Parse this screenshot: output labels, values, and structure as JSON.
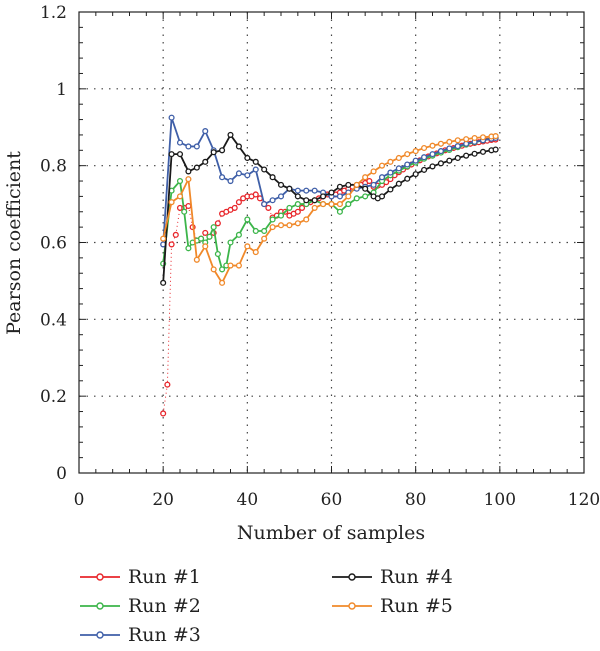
{
  "chart_data": {
    "type": "line",
    "xlabel": "Number of samples",
    "ylabel": "Pearson coefficient",
    "xlim": [
      0,
      120
    ],
    "ylim": [
      0,
      1.2
    ],
    "xticks": [
      0,
      20,
      40,
      60,
      80,
      100,
      120
    ],
    "yticks": [
      0,
      0.2,
      0.4,
      0.6,
      0.8,
      1,
      1.2
    ],
    "xtick_labels": [
      "0",
      "20",
      "40",
      "60",
      "80",
      "100",
      "120"
    ],
    "ytick_labels": [
      "0",
      "0.2",
      "0.4",
      "0.6",
      "0.8",
      "1",
      "1.2"
    ],
    "grid": "dotted",
    "legend_position": "below plot",
    "series": [
      {
        "name": "Run #1",
        "color": "#e8262b",
        "marker": "hollow-circle",
        "line": false,
        "x": [
          20,
          21,
          22,
          23,
          24,
          25,
          26,
          27,
          28,
          29,
          30,
          31,
          32,
          33,
          34,
          35,
          36,
          37,
          38,
          39,
          40,
          41,
          42,
          43,
          44,
          45,
          46,
          47,
          48,
          49,
          50,
          51,
          52,
          53,
          54,
          55,
          56,
          57,
          58,
          59,
          60,
          61,
          62,
          63,
          64,
          65,
          66,
          67,
          68,
          69,
          70,
          71,
          72,
          73,
          74,
          75,
          76,
          77,
          78,
          79,
          80,
          81,
          82,
          83,
          84,
          85,
          86,
          87,
          88,
          89,
          90,
          91,
          92,
          93,
          94,
          95,
          96,
          97,
          98,
          99
        ],
        "y": [
          0.155,
          0.23,
          0.595,
          0.62,
          0.69,
          0.69,
          0.695,
          0.64,
          0.605,
          0.61,
          0.625,
          0.615,
          0.625,
          0.65,
          0.675,
          0.68,
          0.685,
          0.69,
          0.705,
          0.715,
          0.72,
          0.72,
          0.725,
          0.715,
          0.7,
          0.69,
          0.665,
          0.67,
          0.68,
          0.68,
          0.67,
          0.675,
          0.68,
          0.69,
          0.7,
          0.705,
          0.71,
          0.715,
          0.72,
          0.725,
          0.72,
          0.725,
          0.73,
          0.735,
          0.74,
          0.745,
          0.745,
          0.75,
          0.755,
          0.76,
          0.745,
          0.748,
          0.75,
          0.757,
          0.765,
          0.775,
          0.783,
          0.79,
          0.797,
          0.803,
          0.809,
          0.814,
          0.819,
          0.824,
          0.828,
          0.832,
          0.836,
          0.84,
          0.843,
          0.846,
          0.849,
          0.852,
          0.855,
          0.857,
          0.859,
          0.861,
          0.863,
          0.865,
          0.867,
          0.868
        ]
      },
      {
        "name": "Run #2",
        "color": "#3cb54a",
        "marker": "hollow-circle",
        "line": true,
        "x": [
          20,
          22,
          24,
          25,
          26,
          27,
          28,
          29,
          30,
          31,
          32,
          33,
          34,
          35,
          36,
          38,
          40,
          42,
          44,
          46,
          48,
          50,
          52,
          54,
          56,
          58,
          60,
          62,
          64,
          66,
          68,
          70,
          72,
          74,
          76,
          78,
          80,
          82,
          84,
          86,
          88,
          90,
          92,
          94,
          96,
          98,
          99
        ],
        "y": [
          0.545,
          0.735,
          0.76,
          0.68,
          0.585,
          0.6,
          0.605,
          0.61,
          0.6,
          0.615,
          0.64,
          0.57,
          0.53,
          0.54,
          0.6,
          0.62,
          0.66,
          0.63,
          0.63,
          0.66,
          0.67,
          0.69,
          0.7,
          0.7,
          0.71,
          0.7,
          0.7,
          0.68,
          0.7,
          0.715,
          0.72,
          0.73,
          0.76,
          0.775,
          0.787,
          0.798,
          0.808,
          0.818,
          0.826,
          0.834,
          0.841,
          0.848,
          0.855,
          0.861,
          0.866,
          0.871,
          0.873
        ]
      },
      {
        "name": "Run #3",
        "color": "#3f5fa8",
        "marker": "hollow-circle",
        "line": true,
        "x": [
          20,
          22,
          24,
          26,
          28,
          30,
          32,
          34,
          36,
          38,
          40,
          42,
          44,
          46,
          48,
          50,
          52,
          54,
          56,
          58,
          60,
          62,
          64,
          66,
          68,
          70,
          72,
          74,
          76,
          78,
          80,
          82,
          84,
          86,
          88,
          90,
          92,
          94,
          96,
          98,
          99
        ],
        "y": [
          0.595,
          0.925,
          0.86,
          0.85,
          0.85,
          0.89,
          0.84,
          0.77,
          0.76,
          0.78,
          0.775,
          0.79,
          0.7,
          0.71,
          0.72,
          0.74,
          0.735,
          0.735,
          0.735,
          0.73,
          0.72,
          0.72,
          0.73,
          0.74,
          0.745,
          0.75,
          0.77,
          0.782,
          0.793,
          0.803,
          0.813,
          0.822,
          0.83,
          0.838,
          0.845,
          0.851,
          0.857,
          0.862,
          0.866,
          0.87,
          0.872
        ]
      },
      {
        "name": "Run #4",
        "color": "#1a1a1a",
        "marker": "hollow-circle",
        "line": true,
        "x": [
          20,
          22,
          24,
          26,
          28,
          30,
          32,
          34,
          36,
          38,
          40,
          42,
          44,
          46,
          48,
          50,
          52,
          54,
          56,
          58,
          60,
          62,
          64,
          66,
          68,
          70,
          71,
          72,
          74,
          76,
          78,
          80,
          82,
          84,
          86,
          88,
          90,
          92,
          94,
          96,
          98,
          99
        ],
        "y": [
          0.495,
          0.83,
          0.83,
          0.785,
          0.795,
          0.81,
          0.835,
          0.84,
          0.88,
          0.85,
          0.82,
          0.81,
          0.79,
          0.77,
          0.75,
          0.74,
          0.72,
          0.71,
          0.71,
          0.72,
          0.73,
          0.745,
          0.75,
          0.75,
          0.74,
          0.72,
          0.715,
          0.72,
          0.738,
          0.753,
          0.766,
          0.778,
          0.789,
          0.798,
          0.806,
          0.813,
          0.82,
          0.826,
          0.831,
          0.836,
          0.84,
          0.842
        ]
      },
      {
        "name": "Run #5",
        "color": "#f0892a",
        "marker": "hollow-circle",
        "line": true,
        "x": [
          20,
          22,
          24,
          26,
          28,
          30,
          32,
          34,
          36,
          38,
          40,
          42,
          44,
          46,
          48,
          50,
          52,
          54,
          56,
          58,
          60,
          62,
          64,
          66,
          68,
          70,
          72,
          74,
          76,
          78,
          80,
          82,
          84,
          86,
          88,
          90,
          92,
          94,
          96,
          98,
          99
        ],
        "y": [
          0.61,
          0.705,
          0.72,
          0.765,
          0.555,
          0.59,
          0.53,
          0.495,
          0.54,
          0.54,
          0.59,
          0.575,
          0.61,
          0.64,
          0.645,
          0.645,
          0.65,
          0.66,
          0.69,
          0.7,
          0.7,
          0.7,
          0.72,
          0.75,
          0.77,
          0.785,
          0.8,
          0.81,
          0.82,
          0.83,
          0.838,
          0.846,
          0.852,
          0.857,
          0.862,
          0.866,
          0.869,
          0.872,
          0.874,
          0.876,
          0.877
        ]
      }
    ]
  }
}
